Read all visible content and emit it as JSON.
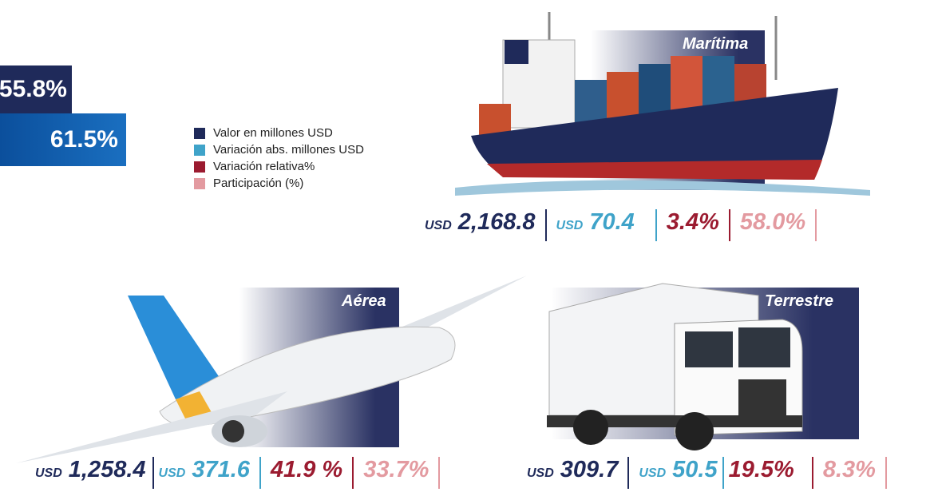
{
  "summary": {
    "top_value": "55.8%",
    "bottom_value": "61.5%"
  },
  "legend": [
    "Valor en millones USD",
    "Variación abs. millones USD",
    "Variación relativa%",
    "Participación (%)"
  ],
  "modes": [
    {
      "name": "Marítima",
      "value": {
        "currency": "USD",
        "amount": "2,168.8"
      },
      "abs_change": {
        "currency": "USD",
        "amount": "70.4"
      },
      "rel_change": "3.4%",
      "share": "58.0%"
    },
    {
      "name": "Aérea",
      "value": {
        "currency": "USD",
        "amount": "1,258.4"
      },
      "abs_change": {
        "currency": "USD",
        "amount": "371.6"
      },
      "rel_change": "41.9 %",
      "share": "33.7%"
    },
    {
      "name": "Terrestre",
      "value": {
        "currency": "USD",
        "amount": "309.7"
      },
      "abs_change": {
        "currency": "USD",
        "amount": "50.5"
      },
      "rel_change": "19.5%",
      "share": "8.3%"
    }
  ]
}
